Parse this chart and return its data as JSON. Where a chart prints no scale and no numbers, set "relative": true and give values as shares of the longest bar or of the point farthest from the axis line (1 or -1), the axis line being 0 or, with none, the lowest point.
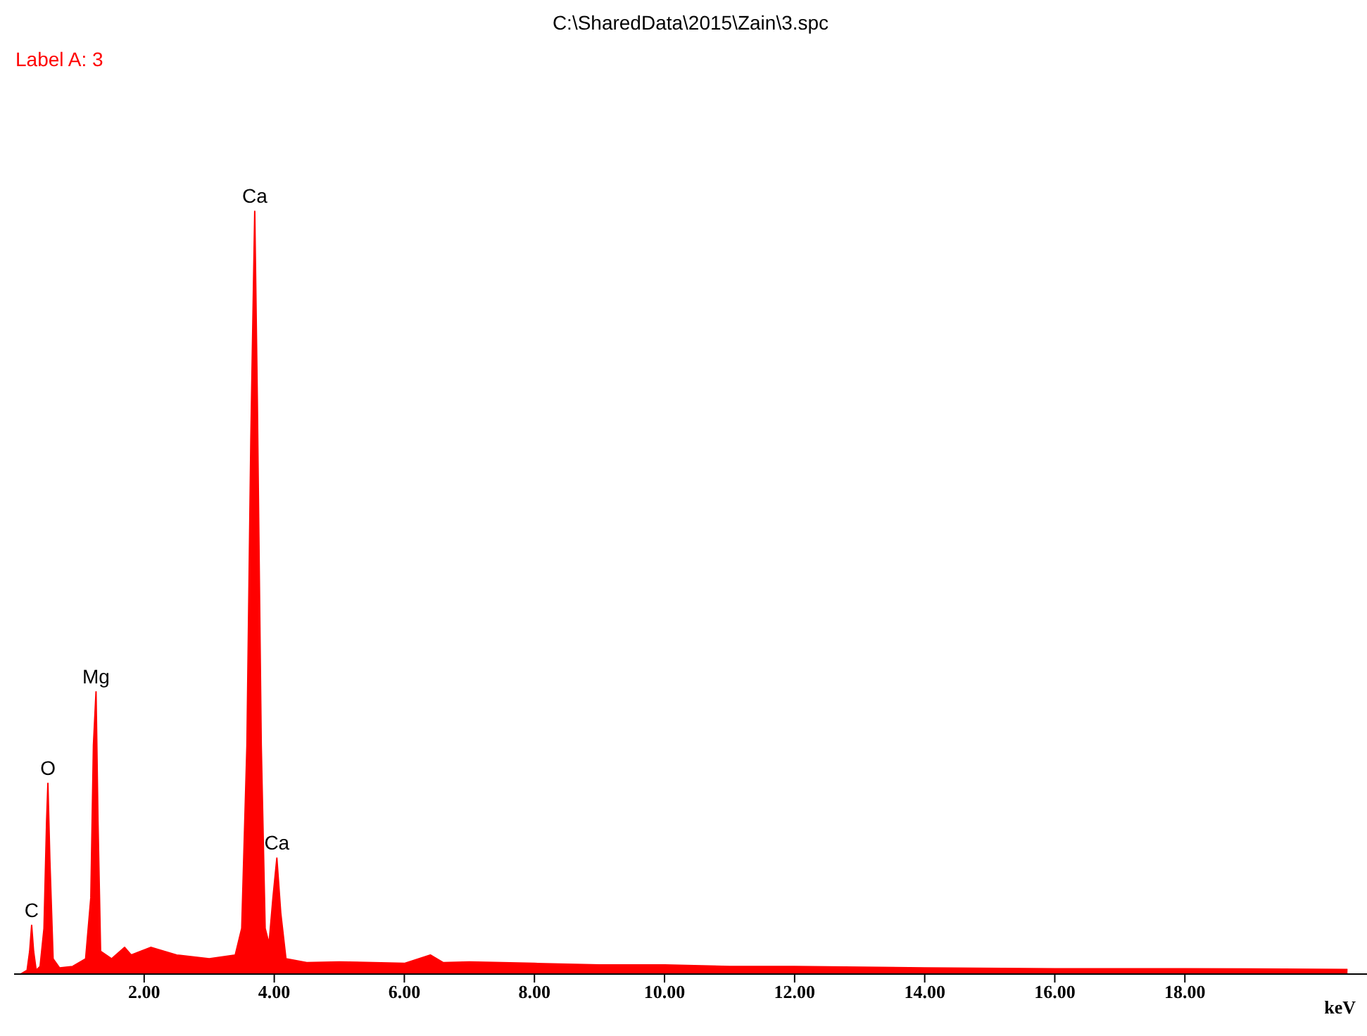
{
  "chart_data": {
    "type": "area",
    "title": "C:\\SharedData\\2015\\Zain\\3.spc",
    "xlabel": "keV",
    "relative": true,
    "xlim": [
      0,
      20.8
    ],
    "xticks": [
      {
        "value": 2,
        "label": "2.00"
      },
      {
        "value": 4,
        "label": "4.00"
      },
      {
        "value": 6,
        "label": "6.00"
      },
      {
        "value": 8,
        "label": "8.00"
      },
      {
        "value": 10,
        "label": "10.00"
      },
      {
        "value": 12,
        "label": "12.00"
      },
      {
        "value": 14,
        "label": "14.00"
      },
      {
        "value": 16,
        "label": "16.00"
      },
      {
        "value": 18,
        "label": "18.00"
      }
    ],
    "series": [
      {
        "color": "#ff0000",
        "x": [
          0.1,
          0.2,
          0.24,
          0.27,
          0.3,
          0.34,
          0.4,
          0.46,
          0.5,
          0.52,
          0.55,
          0.6,
          0.7,
          0.9,
          1.1,
          1.18,
          1.22,
          1.26,
          1.29,
          1.33,
          1.5,
          1.7,
          1.8,
          2.1,
          2.5,
          3.0,
          3.4,
          3.5,
          3.58,
          3.64,
          3.7,
          3.74,
          3.8,
          3.86,
          3.92,
          3.98,
          4.04,
          4.1,
          4.18,
          4.5,
          5,
          6,
          6.4,
          6.6,
          7,
          8,
          9,
          10,
          11,
          12,
          14,
          16,
          18,
          20.5
        ],
        "values": [
          0,
          0.005,
          0.03,
          0.064,
          0.03,
          0.005,
          0.01,
          0.06,
          0.2,
          0.25,
          0.15,
          0.02,
          0.008,
          0.01,
          0.02,
          0.1,
          0.3,
          0.37,
          0.2,
          0.03,
          0.02,
          0.035,
          0.025,
          0.035,
          0.025,
          0.02,
          0.025,
          0.06,
          0.3,
          0.7,
          1,
          0.75,
          0.3,
          0.06,
          0.04,
          0.1,
          0.152,
          0.08,
          0.02,
          0.015,
          0.016,
          0.014,
          0.025,
          0.015,
          0.016,
          0.014,
          0.012,
          0.012,
          0.01,
          0.01,
          0.008,
          0.007,
          0.007,
          0.006
        ]
      }
    ],
    "annotations": [
      "Label A: 3",
      {
        "text": "C",
        "x": 0.27,
        "y": 0.064
      },
      {
        "text": "O",
        "x": 0.52,
        "y": 0.25
      },
      {
        "text": "Mg",
        "x": 1.26,
        "y": 0.37
      },
      {
        "text": "Ca",
        "x": 3.7,
        "y": 1
      },
      {
        "text": "Ca",
        "x": 4.04,
        "y": 0.152
      }
    ]
  }
}
